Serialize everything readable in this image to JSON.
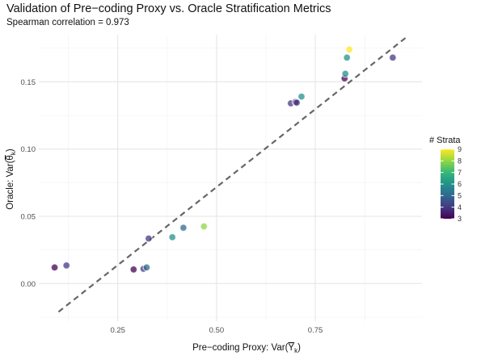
{
  "chart_data": {
    "type": "scatter",
    "title": "Validation of Pre−coding Proxy vs. Oracle Stratification Metrics",
    "subtitle": "Spearman correlation = 0.973",
    "xlabel_prefix": "Pre−coding Proxy: Var(",
    "xlabel_var": "Y",
    "xlabel_sub": "k",
    "xlabel_suffix": ")",
    "ylabel_prefix": "Oracle: Var(",
    "ylabel_var": "θ",
    "ylabel_sub": "k",
    "ylabel_suffix": ")",
    "xlim": [
      0.05,
      1.02
    ],
    "ylim": [
      -0.028,
      0.185
    ],
    "x_ticks": [
      0.25,
      0.5,
      0.75
    ],
    "x_tick_labels": [
      "0.25",
      "0.50",
      "0.75"
    ],
    "y_ticks": [
      0.0,
      0.05,
      0.1,
      0.15
    ],
    "y_tick_labels": [
      "0.00",
      "0.05",
      "0.10",
      "0.15"
    ],
    "grid": true,
    "reference_line": {
      "style": "dashed",
      "color": "#666666",
      "from": [
        0.1,
        -0.021
      ],
      "to": [
        0.98,
        0.183
      ]
    },
    "legend": {
      "title": "# Strata",
      "placement": "right",
      "min": 3,
      "max": 9,
      "ticks": [
        3,
        4,
        5,
        6,
        7,
        8,
        9
      ],
      "tick_labels": [
        "3",
        "4",
        "5",
        "6",
        "7",
        "8",
        "9"
      ]
    },
    "colors": {
      "3": "#440154",
      "4": "#443983",
      "5": "#31688e",
      "6": "#21918c",
      "7": "#35b779",
      "8": "#90d743",
      "9": "#fde725"
    },
    "points": [
      {
        "x": 0.09,
        "y": 0.012,
        "strata": 3
      },
      {
        "x": 0.12,
        "y": 0.0135,
        "strata": 4
      },
      {
        "x": 0.29,
        "y": 0.0105,
        "strata": 3
      },
      {
        "x": 0.315,
        "y": 0.011,
        "strata": 4
      },
      {
        "x": 0.323,
        "y": 0.012,
        "strata": 5
      },
      {
        "x": 0.328,
        "y": 0.0335,
        "strata": 4
      },
      {
        "x": 0.388,
        "y": 0.0345,
        "strata": 6
      },
      {
        "x": 0.416,
        "y": 0.0415,
        "strata": 5
      },
      {
        "x": 0.468,
        "y": 0.0425,
        "strata": 8
      },
      {
        "x": 0.688,
        "y": 0.134,
        "strata": 4
      },
      {
        "x": 0.7,
        "y": 0.135,
        "strata": 3
      },
      {
        "x": 0.703,
        "y": 0.1345,
        "strata": 4
      },
      {
        "x": 0.715,
        "y": 0.139,
        "strata": 6
      },
      {
        "x": 0.824,
        "y": 0.1525,
        "strata": 3
      },
      {
        "x": 0.826,
        "y": 0.156,
        "strata": 6
      },
      {
        "x": 0.83,
        "y": 0.168,
        "strata": 6
      },
      {
        "x": 0.836,
        "y": 0.174,
        "strata": 9
      },
      {
        "x": 0.946,
        "y": 0.168,
        "strata": 4
      }
    ]
  }
}
